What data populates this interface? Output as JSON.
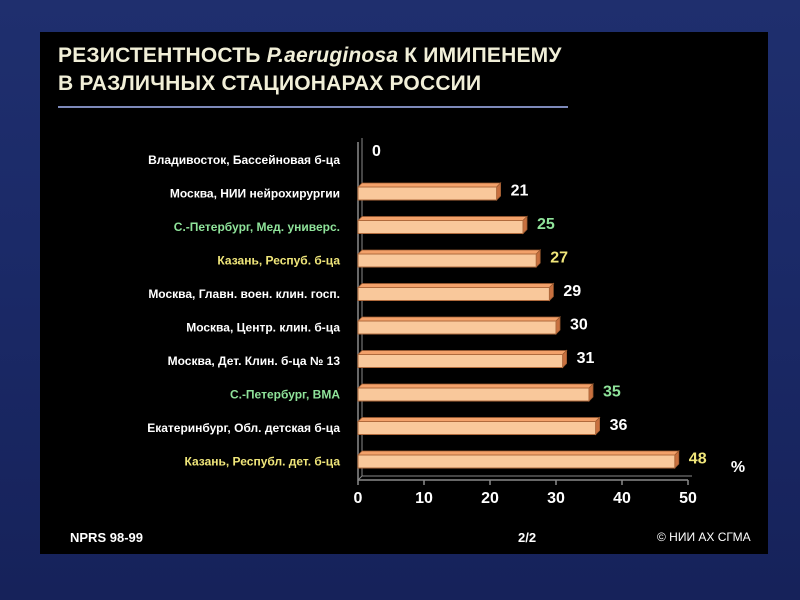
{
  "title": {
    "line1_prefix": "РЕЗИСТЕНТНОСТЬ ",
    "species": "P.aeruginosa",
    "line1_suffix": " К ИМИПЕНЕМУ",
    "line2": "В РАЗЛИЧНЫХ СТАЦИОНАРАХ РОССИИ"
  },
  "footer": {
    "source": "NPRS 98-99",
    "page": "2/2",
    "copyright": "© НИИ АХ СГМА"
  },
  "chart_data": {
    "type": "bar",
    "orientation": "horizontal",
    "xlabel": "%",
    "xlim": [
      0,
      50
    ],
    "xticks": [
      0,
      10,
      20,
      30,
      40,
      50
    ],
    "grid": false,
    "legend": "none",
    "bar_color": "#f9c89b",
    "categories": [
      "Владивосток, Бассейновая б-ца",
      "Москва, НИИ нейрохирургии",
      "С.-Петербург, Мед. универс.",
      "Казань, Респуб. б-ца",
      "Москва, Главн. воен. клин. госп.",
      "Москва, Центр. клин. б-ца",
      "Москва, Дет. Клин. б-ца № 13",
      "С.-Петербург, ВМА",
      "Екатеринбург, Обл. детская б-ца",
      "Казань, Республ. дет. б-ца"
    ],
    "label_colors": [
      "#ffffff",
      "#ffffff",
      "#8fe39a",
      "#f0e67a",
      "#ffffff",
      "#ffffff",
      "#ffffff",
      "#8fe39a",
      "#ffffff",
      "#f0e67a"
    ],
    "value_label_colors": [
      "#ffffff",
      "#ffffff",
      "#8fe39a",
      "#f0e67a",
      "#ffffff",
      "#ffffff",
      "#ffffff",
      "#8fe39a",
      "#ffffff",
      "#f0e67a"
    ],
    "values": [
      0,
      21,
      25,
      27,
      29,
      30,
      31,
      35,
      36,
      48
    ]
  }
}
